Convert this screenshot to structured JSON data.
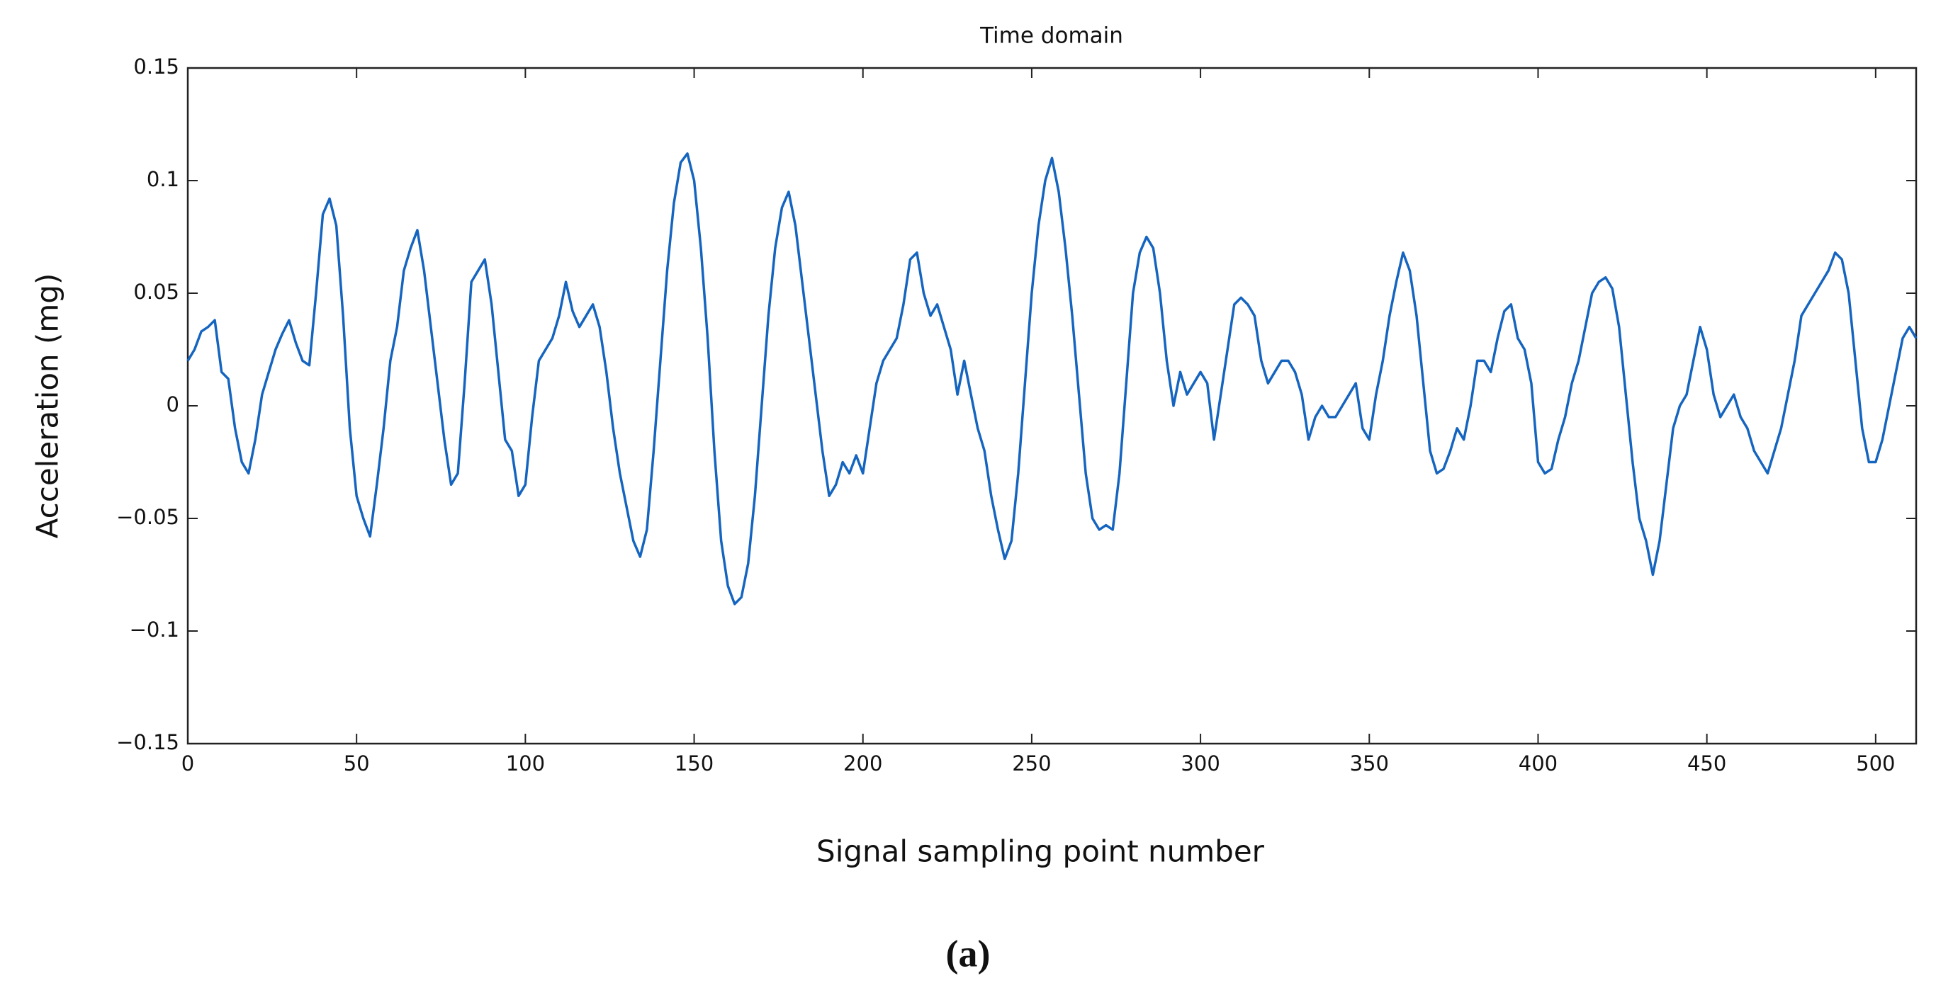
{
  "chart_data": {
    "type": "line",
    "title": "Time domain",
    "x_label": "Signal sampling point number",
    "y_label": "Acceleration (mg)",
    "caption": "(a)",
    "x": [
      0,
      2,
      4,
      6,
      8,
      10,
      12,
      14,
      16,
      18,
      20,
      22,
      24,
      26,
      28,
      30,
      32,
      34,
      36,
      38,
      40,
      42,
      44,
      46,
      48,
      50,
      52,
      54,
      56,
      58,
      60,
      62,
      64,
      66,
      68,
      70,
      72,
      74,
      76,
      78,
      80,
      82,
      84,
      86,
      88,
      90,
      92,
      94,
      96,
      98,
      100,
      102,
      104,
      106,
      108,
      110,
      112,
      114,
      116,
      118,
      120,
      122,
      124,
      126,
      128,
      130,
      132,
      134,
      136,
      138,
      140,
      142,
      144,
      146,
      148,
      150,
      152,
      154,
      156,
      158,
      160,
      162,
      164,
      166,
      168,
      170,
      172,
      174,
      176,
      178,
      180,
      182,
      184,
      186,
      188,
      190,
      192,
      194,
      196,
      198,
      200,
      202,
      204,
      206,
      208,
      210,
      212,
      214,
      216,
      218,
      220,
      222,
      224,
      226,
      228,
      230,
      232,
      234,
      236,
      238,
      240,
      242,
      244,
      246,
      248,
      250,
      252,
      254,
      256,
      258,
      260,
      262,
      264,
      266,
      268,
      270,
      272,
      274,
      276,
      278,
      280,
      282,
      284,
      286,
      288,
      290,
      292,
      294,
      296,
      298,
      300,
      302,
      304,
      306,
      308,
      310,
      312,
      314,
      316,
      318,
      320,
      322,
      324,
      326,
      328,
      330,
      332,
      334,
      336,
      338,
      340,
      342,
      344,
      346,
      348,
      350,
      352,
      354,
      356,
      358,
      360,
      362,
      364,
      366,
      368,
      370,
      372,
      374,
      376,
      378,
      380,
      382,
      384,
      386,
      388,
      390,
      392,
      394,
      396,
      398,
      400,
      402,
      404,
      406,
      408,
      410,
      412,
      414,
      416,
      418,
      420,
      422,
      424,
      426,
      428,
      430,
      432,
      434,
      436,
      438,
      440,
      442,
      444,
      446,
      448,
      450,
      452,
      454,
      456,
      458,
      460,
      462,
      464,
      466,
      468,
      470,
      472,
      474,
      476,
      478,
      480,
      482,
      484,
      486,
      488,
      490,
      492,
      494,
      496,
      498,
      500,
      502,
      504,
      506,
      508,
      510,
      512
    ],
    "series": [
      {
        "color": "#1565c0",
        "values": [
          0.02,
          0.025,
          0.033,
          0.035,
          0.038,
          0.015,
          0.012,
          -0.01,
          -0.025,
          -0.03,
          -0.015,
          0.005,
          0.015,
          0.025,
          0.032,
          0.038,
          0.028,
          0.02,
          0.018,
          0.05,
          0.085,
          0.092,
          0.08,
          0.04,
          -0.01,
          -0.04,
          -0.05,
          -0.058,
          -0.035,
          -0.01,
          0.02,
          0.035,
          0.06,
          0.07,
          0.078,
          0.06,
          0.035,
          0.01,
          -0.015,
          -0.035,
          -0.03,
          0.01,
          0.055,
          0.06,
          0.065,
          0.045,
          0.015,
          -0.015,
          -0.02,
          -0.04,
          -0.035,
          -0.005,
          0.02,
          0.025,
          0.03,
          0.04,
          0.055,
          0.042,
          0.035,
          0.04,
          0.045,
          0.035,
          0.015,
          -0.01,
          -0.03,
          -0.045,
          -0.06,
          -0.067,
          -0.055,
          -0.02,
          0.02,
          0.06,
          0.09,
          0.108,
          0.112,
          0.1,
          0.07,
          0.03,
          -0.02,
          -0.06,
          -0.08,
          -0.088,
          -0.085,
          -0.07,
          -0.04,
          0,
          0.04,
          0.07,
          0.088,
          0.095,
          0.08,
          0.055,
          0.03,
          0.005,
          -0.02,
          -0.04,
          -0.035,
          -0.025,
          -0.03,
          -0.022,
          -0.03,
          -0.01,
          0.01,
          0.02,
          0.025,
          0.03,
          0.045,
          0.065,
          0.068,
          0.05,
          0.04,
          0.045,
          0.035,
          0.025,
          0.005,
          0.02,
          0.005,
          -0.01,
          -0.02,
          -0.04,
          -0.055,
          -0.068,
          -0.06,
          -0.03,
          0.01,
          0.05,
          0.08,
          0.1,
          0.11,
          0.095,
          0.07,
          0.04,
          0.005,
          -0.03,
          -0.05,
          -0.055,
          -0.053,
          -0.055,
          -0.03,
          0.01,
          0.05,
          0.068,
          0.075,
          0.07,
          0.05,
          0.02,
          0,
          0.015,
          0.005,
          0.01,
          0.015,
          0.01,
          -0.015,
          0.005,
          0.025,
          0.045,
          0.048,
          0.045,
          0.04,
          0.02,
          0.01,
          0.015,
          0.02,
          0.02,
          0.015,
          0.005,
          -0.015,
          -0.005,
          0,
          -0.005,
          -0.005,
          0,
          0.005,
          0.01,
          -0.01,
          -0.015,
          0.005,
          0.02,
          0.04,
          0.055,
          0.068,
          0.06,
          0.04,
          0.01,
          -0.02,
          -0.03,
          -0.028,
          -0.02,
          -0.01,
          -0.015,
          0,
          0.02,
          0.02,
          0.015,
          0.03,
          0.042,
          0.045,
          0.03,
          0.025,
          0.01,
          -0.025,
          -0.03,
          -0.028,
          -0.015,
          -0.005,
          0.01,
          0.02,
          0.035,
          0.05,
          0.055,
          0.057,
          0.052,
          0.035,
          0.005,
          -0.025,
          -0.05,
          -0.06,
          -0.075,
          -0.06,
          -0.035,
          -0.01,
          0,
          0.005,
          0.02,
          0.035,
          0.025,
          0.005,
          -0.005,
          0,
          0.005,
          -0.005,
          -0.01,
          -0.02,
          -0.025,
          -0.03,
          -0.02,
          -0.01,
          0.005,
          0.02,
          0.04,
          0.045,
          0.05,
          0.055,
          0.06,
          0.068,
          0.065,
          0.05,
          0.02,
          -0.01,
          -0.025,
          -0.025,
          -0.015,
          0,
          0.015,
          0.03,
          0.035,
          0.03
        ]
      }
    ],
    "xlim": [
      0,
      512
    ],
    "xticks": [
      0,
      50,
      100,
      150,
      200,
      250,
      300,
      350,
      400,
      450,
      500
    ],
    "ylim": [
      -0.15,
      0.15
    ],
    "yticks": [
      {
        "value": -0.15,
        "label": "−0.15"
      },
      {
        "value": -0.1,
        "label": "−0.1"
      },
      {
        "value": -0.05,
        "label": "−0.05"
      },
      0,
      0.05,
      0.1,
      0.15
    ]
  }
}
